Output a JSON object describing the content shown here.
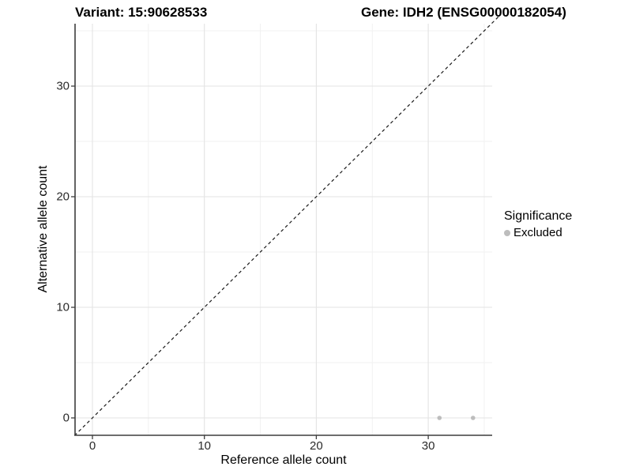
{
  "header": {
    "variant_title": "Variant: 15:90628533",
    "gene_title": "Gene: IDH2 (ENSG00000182054)"
  },
  "legend": {
    "title": "Significance",
    "items": [
      {
        "label": "Excluded",
        "color": "#bdbdbd"
      }
    ]
  },
  "chart_data": {
    "type": "scatter",
    "title_left": "Variant: 15:90628533",
    "title_right": "Gene: IDH2 (ENSG00000182054)",
    "xlabel": "Reference allele count",
    "ylabel": "Alternative allele count",
    "xlim": [
      -1.7,
      35.7
    ],
    "ylim": [
      -1.7,
      35.7
    ],
    "x_ticks": [
      0,
      10,
      20,
      30
    ],
    "y_ticks": [
      0,
      10,
      20,
      30
    ],
    "x_minor_ticks": [
      5,
      15,
      25,
      35
    ],
    "y_minor_ticks": [
      5,
      15,
      25,
      35
    ],
    "grid": "major and minor gridlines on white background",
    "legend_position": "right",
    "series": [
      {
        "name": "Excluded",
        "color": "#bdbdbd",
        "points": [
          {
            "x": 31,
            "y": 0
          },
          {
            "x": 34,
            "y": 0
          }
        ]
      }
    ],
    "reference_line": {
      "type": "identity y=x",
      "style": "dashed",
      "color": "#1a1a1a"
    }
  },
  "colors": {
    "grid_major": "#e3e3e3",
    "grid_minor": "#f1f1f1",
    "axis_line": "#3d3d3d",
    "point": "#bfbfbf",
    "background": "#ffffff"
  }
}
